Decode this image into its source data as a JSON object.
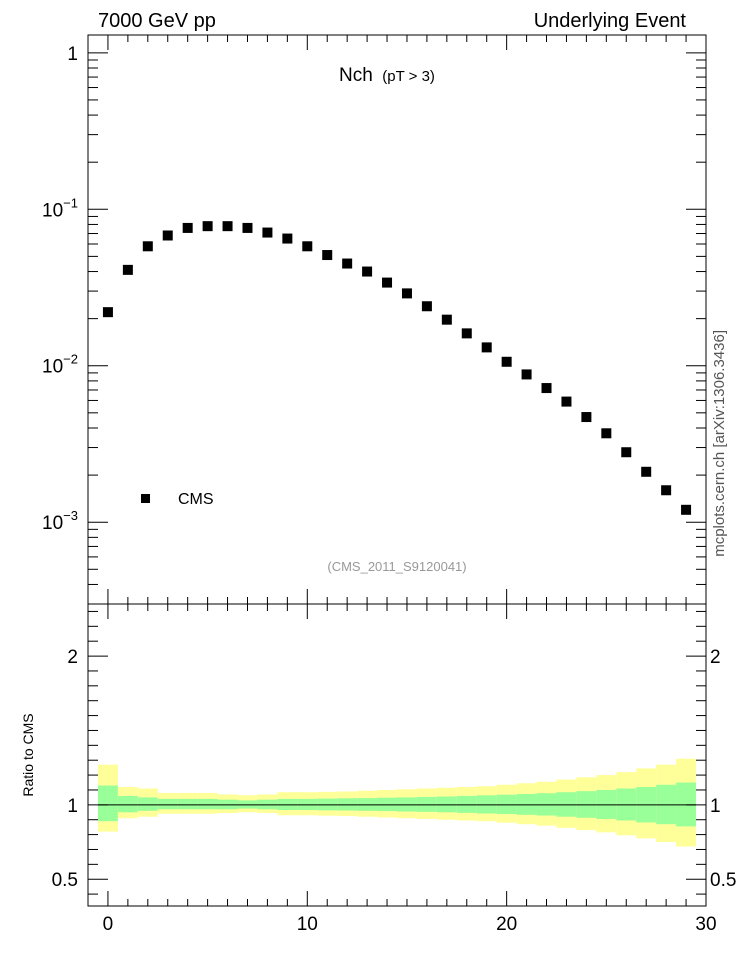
{
  "header": {
    "left": "7000 GeV pp",
    "right": "Underlying Event",
    "side": "mcplots.cern.ch [arXiv:1306.3436]"
  },
  "chart_data": {
    "type": "scatter",
    "title": "Nch",
    "title_sub": "(pT >  3)",
    "analysis_id": "(CMS_2011_S9120041)",
    "legend": {
      "placement": "left",
      "entries": [
        "CMS"
      ]
    },
    "xlim": [
      -1,
      30
    ],
    "x_ticks": [
      0,
      10,
      20,
      30
    ],
    "main": {
      "y_scale": "log",
      "ylim": [
        0.0003,
        1.3
      ],
      "y_ticks": [
        {
          "v": 1,
          "base": "1",
          "exp": ""
        },
        {
          "v": 0.1,
          "base": "10",
          "exp": "−1"
        },
        {
          "v": 0.01,
          "base": "10",
          "exp": "−2"
        },
        {
          "v": 0.001,
          "base": "10",
          "exp": "−3"
        }
      ],
      "series": [
        {
          "name": "CMS",
          "color": "#000000",
          "x": [
            0,
            1,
            2,
            3,
            4,
            5,
            6,
            7,
            8,
            9,
            10,
            11,
            12,
            13,
            14,
            15,
            16,
            17,
            18,
            19,
            20,
            21,
            22,
            23,
            24,
            25,
            26,
            27,
            28,
            29
          ],
          "y": [
            0.022,
            0.041,
            0.058,
            0.068,
            0.076,
            0.078,
            0.078,
            0.076,
            0.071,
            0.065,
            0.058,
            0.051,
            0.045,
            0.04,
            0.034,
            0.029,
            0.024,
            0.0197,
            0.0161,
            0.0131,
            0.0106,
            0.0088,
            0.0072,
            0.0059,
            0.0047,
            0.0037,
            0.0028,
            0.0021,
            0.0016,
            0.0012
          ]
        }
      ]
    },
    "ratio": {
      "ylabel": "Ratio to CMS",
      "ylim": [
        0.32,
        2.35
      ],
      "y_ticks": [
        0.5,
        1,
        2
      ],
      "reference_line": 1,
      "band_colors": {
        "inner": "#99ff99",
        "outer": "#ffff99"
      },
      "bins": [
        {
          "x0": -0.5,
          "x1": 0.5,
          "inner": [
            0.89,
            1.13
          ],
          "outer": [
            0.82,
            1.27
          ]
        },
        {
          "x0": 0.5,
          "x1": 1.5,
          "inner": [
            0.95,
            1.06
          ],
          "outer": [
            0.91,
            1.12
          ]
        },
        {
          "x0": 1.5,
          "x1": 2.5,
          "inner": [
            0.96,
            1.05
          ],
          "outer": [
            0.92,
            1.11
          ]
        },
        {
          "x0": 2.5,
          "x1": 3.5,
          "inner": [
            0.97,
            1.04
          ],
          "outer": [
            0.94,
            1.08
          ]
        },
        {
          "x0": 3.5,
          "x1": 4.5,
          "inner": [
            0.97,
            1.04
          ],
          "outer": [
            0.94,
            1.08
          ]
        },
        {
          "x0": 4.5,
          "x1": 5.5,
          "inner": [
            0.97,
            1.04
          ],
          "outer": [
            0.94,
            1.08
          ]
        },
        {
          "x0": 5.5,
          "x1": 6.5,
          "inner": [
            0.97,
            1.035
          ],
          "outer": [
            0.945,
            1.07
          ]
        },
        {
          "x0": 6.5,
          "x1": 7.5,
          "inner": [
            0.975,
            1.03
          ],
          "outer": [
            0.95,
            1.065
          ]
        },
        {
          "x0": 7.5,
          "x1": 8.5,
          "inner": [
            0.97,
            1.035
          ],
          "outer": [
            0.945,
            1.07
          ]
        },
        {
          "x0": 8.5,
          "x1": 9.5,
          "inner": [
            0.965,
            1.04
          ],
          "outer": [
            0.93,
            1.085
          ]
        },
        {
          "x0": 9.5,
          "x1": 10.5,
          "inner": [
            0.965,
            1.04
          ],
          "outer": [
            0.93,
            1.085
          ]
        },
        {
          "x0": 10.5,
          "x1": 11.5,
          "inner": [
            0.963,
            1.042
          ],
          "outer": [
            0.927,
            1.087
          ]
        },
        {
          "x0": 11.5,
          "x1": 12.5,
          "inner": [
            0.962,
            1.044
          ],
          "outer": [
            0.925,
            1.09
          ]
        },
        {
          "x0": 12.5,
          "x1": 13.5,
          "inner": [
            0.96,
            1.045
          ],
          "outer": [
            0.92,
            1.095
          ]
        },
        {
          "x0": 13.5,
          "x1": 14.5,
          "inner": [
            0.958,
            1.048
          ],
          "outer": [
            0.915,
            1.1
          ]
        },
        {
          "x0": 14.5,
          "x1": 15.5,
          "inner": [
            0.955,
            1.05
          ],
          "outer": [
            0.91,
            1.105
          ]
        },
        {
          "x0": 15.5,
          "x1": 16.5,
          "inner": [
            0.953,
            1.053
          ],
          "outer": [
            0.905,
            1.11
          ]
        },
        {
          "x0": 16.5,
          "x1": 17.5,
          "inner": [
            0.95,
            1.056
          ],
          "outer": [
            0.9,
            1.115
          ]
        },
        {
          "x0": 17.5,
          "x1": 18.5,
          "inner": [
            0.946,
            1.06
          ],
          "outer": [
            0.895,
            1.12
          ]
        },
        {
          "x0": 18.5,
          "x1": 19.5,
          "inner": [
            0.942,
            1.064
          ],
          "outer": [
            0.89,
            1.125
          ]
        },
        {
          "x0": 19.5,
          "x1": 20.5,
          "inner": [
            0.938,
            1.068
          ],
          "outer": [
            0.88,
            1.135
          ]
        },
        {
          "x0": 20.5,
          "x1": 21.5,
          "inner": [
            0.933,
            1.073
          ],
          "outer": [
            0.87,
            1.145
          ]
        },
        {
          "x0": 21.5,
          "x1": 22.5,
          "inner": [
            0.928,
            1.078
          ],
          "outer": [
            0.86,
            1.155
          ]
        },
        {
          "x0": 22.5,
          "x1": 23.5,
          "inner": [
            0.92,
            1.085
          ],
          "outer": [
            0.845,
            1.17
          ]
        },
        {
          "x0": 23.5,
          "x1": 24.5,
          "inner": [
            0.913,
            1.092
          ],
          "outer": [
            0.83,
            1.185
          ]
        },
        {
          "x0": 24.5,
          "x1": 25.5,
          "inner": [
            0.905,
            1.1
          ],
          "outer": [
            0.815,
            1.2
          ]
        },
        {
          "x0": 25.5,
          "x1": 26.5,
          "inner": [
            0.895,
            1.11
          ],
          "outer": [
            0.795,
            1.22
          ]
        },
        {
          "x0": 26.5,
          "x1": 27.5,
          "inner": [
            0.882,
            1.12
          ],
          "outer": [
            0.775,
            1.245
          ]
        },
        {
          "x0": 27.5,
          "x1": 28.5,
          "inner": [
            0.87,
            1.135
          ],
          "outer": [
            0.75,
            1.27
          ]
        },
        {
          "x0": 28.5,
          "x1": 29.5,
          "inner": [
            0.855,
            1.15
          ],
          "outer": [
            0.72,
            1.31
          ]
        }
      ]
    }
  }
}
